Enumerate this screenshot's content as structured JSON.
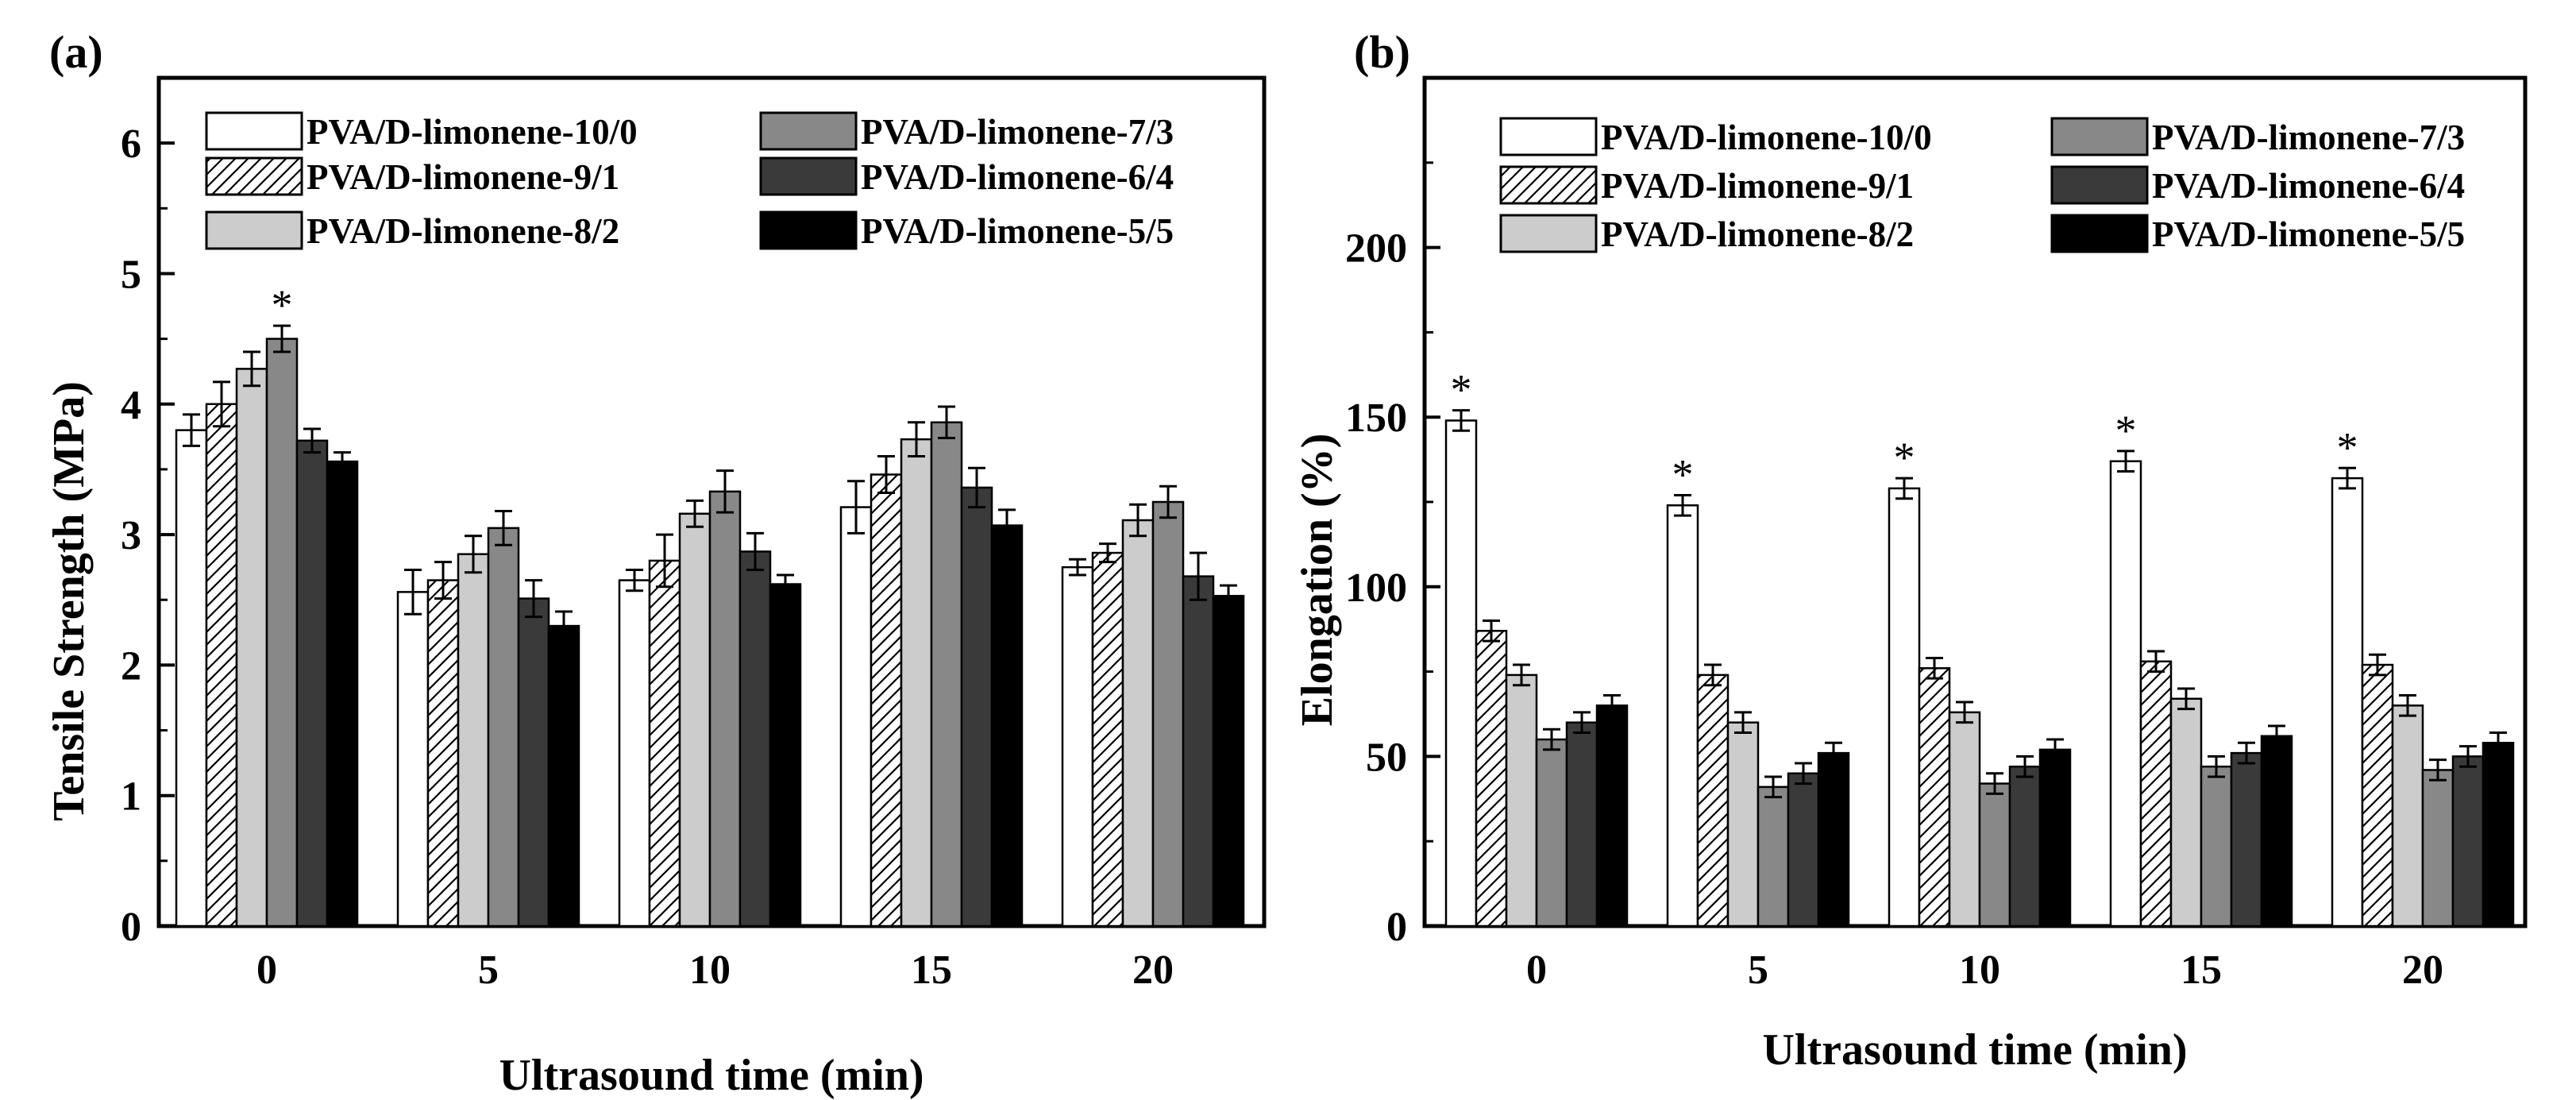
{
  "chart_data": [
    {
      "panel": "(a)",
      "type": "bar",
      "xlabel": "Ultrasound time (min)",
      "ylabel": "Tensile Strength (MPa)",
      "ylim": [
        0,
        6.5
      ],
      "yticks": [
        "0",
        "1",
        "2",
        "3",
        "4",
        "5",
        "6"
      ],
      "categories": [
        "0",
        "5",
        "10",
        "15",
        "20"
      ],
      "significance_label": "*",
      "series": [
        {
          "name": "PVA/D-limonene-10/0",
          "fill": "white",
          "values": [
            3.8,
            2.56,
            2.65,
            3.21,
            2.75
          ],
          "errors": [
            0.12,
            0.17,
            0.08,
            0.2,
            0.06
          ],
          "star": []
        },
        {
          "name": "PVA/D-limonene-9/1",
          "fill": "hatch",
          "values": [
            4.0,
            2.65,
            2.8,
            3.46,
            2.86
          ],
          "errors": [
            0.17,
            0.14,
            0.2,
            0.14,
            0.07
          ],
          "star": []
        },
        {
          "name": "PVA/D-limonene-8/2",
          "fill": "#cccccc",
          "values": [
            4.27,
            2.85,
            3.16,
            3.73,
            3.11
          ],
          "errors": [
            0.13,
            0.14,
            0.1,
            0.13,
            0.12
          ],
          "star": []
        },
        {
          "name": "PVA/D-limonene-7/3",
          "fill": "#888888",
          "values": [
            4.5,
            3.05,
            3.33,
            3.86,
            3.25
          ],
          "errors": [
            0.1,
            0.13,
            0.16,
            0.12,
            0.12
          ],
          "star": [
            0
          ]
        },
        {
          "name": "PVA/D-limonene-6/4",
          "fill": "#3a3a3a",
          "values": [
            3.72,
            2.51,
            2.87,
            3.36,
            2.68
          ],
          "errors": [
            0.09,
            0.14,
            0.14,
            0.15,
            0.18
          ],
          "star": []
        },
        {
          "name": "PVA/D-limonene-5/5",
          "fill": "#000000",
          "values": [
            3.56,
            2.3,
            2.62,
            3.07,
            2.53
          ],
          "errors": [
            0.07,
            0.11,
            0.07,
            0.12,
            0.08
          ],
          "star": []
        }
      ]
    },
    {
      "panel": "(b)",
      "type": "bar",
      "xlabel": "Ultrasound time (min)",
      "ylabel": "Elongation (%)",
      "ylim": [
        0,
        250
      ],
      "yticks": [
        "0",
        "50",
        "100",
        "150",
        "200"
      ],
      "categories": [
        "0",
        "5",
        "10",
        "15",
        "20"
      ],
      "significance_label": "*",
      "series": [
        {
          "name": "PVA/D-limonene-10/0",
          "fill": "white",
          "values": [
            149,
            124,
            129,
            137,
            132
          ],
          "errors": [
            3,
            3,
            3,
            3,
            3
          ],
          "star": [
            0,
            1,
            2,
            3,
            4
          ]
        },
        {
          "name": "PVA/D-limonene-9/1",
          "fill": "hatch",
          "values": [
            87,
            74,
            76,
            78,
            77
          ],
          "errors": [
            3,
            3,
            3,
            3,
            3
          ],
          "star": []
        },
        {
          "name": "PVA/D-limonene-8/2",
          "fill": "#cccccc",
          "values": [
            74,
            60,
            63,
            67,
            65
          ],
          "errors": [
            3,
            3,
            3,
            3,
            3
          ],
          "star": []
        },
        {
          "name": "PVA/D-limonene-7/3",
          "fill": "#888888",
          "values": [
            55,
            41,
            42,
            47,
            46
          ],
          "errors": [
            3,
            3,
            3,
            3,
            3
          ],
          "star": []
        },
        {
          "name": "PVA/D-limonene-6/4",
          "fill": "#3a3a3a",
          "values": [
            60,
            45,
            47,
            51,
            50
          ],
          "errors": [
            3,
            3,
            3,
            3,
            3
          ],
          "star": []
        },
        {
          "name": "PVA/D-limonene-5/5",
          "fill": "#000000",
          "values": [
            65,
            51,
            52,
            56,
            54
          ],
          "errors": [
            3,
            3,
            3,
            3,
            3
          ],
          "star": []
        }
      ]
    }
  ]
}
